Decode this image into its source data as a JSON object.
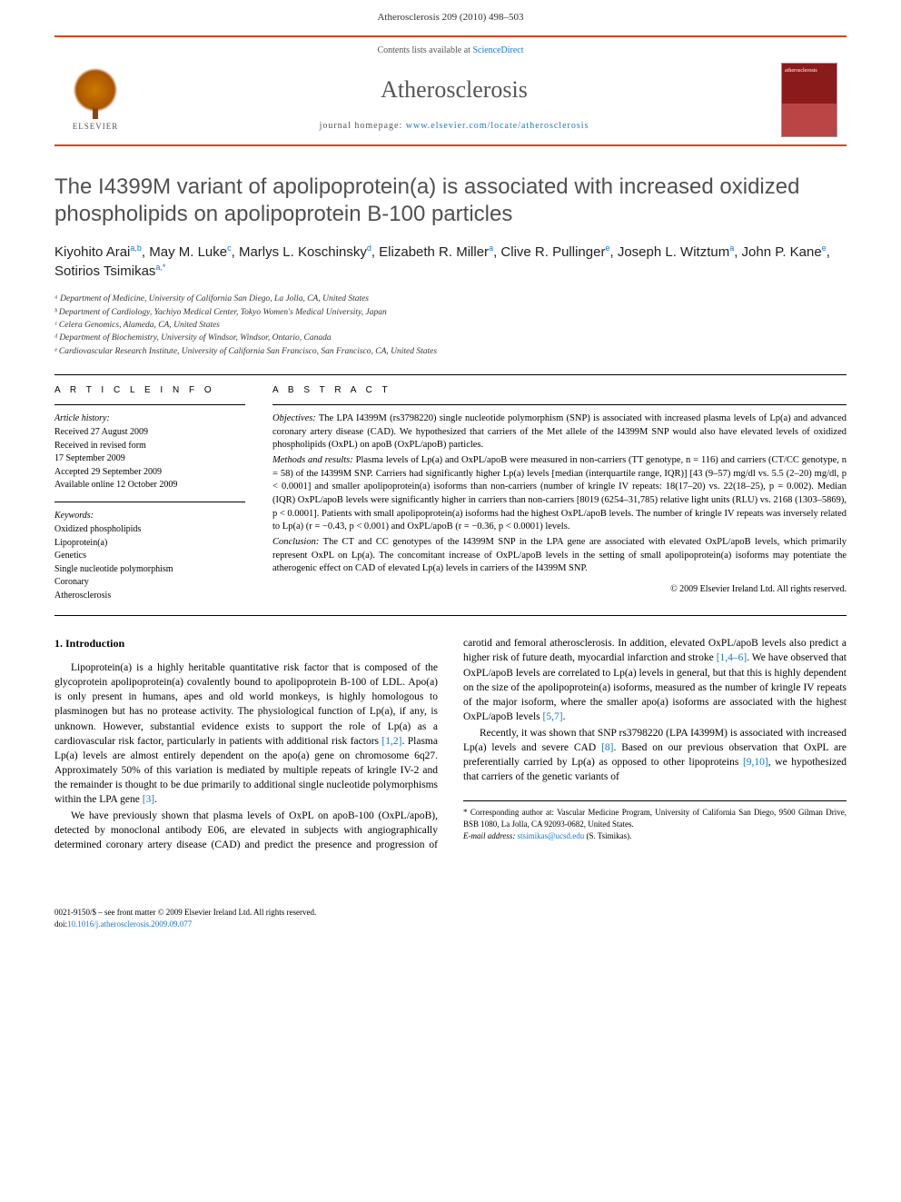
{
  "page_header": "Atherosclerosis 209 (2010) 498–503",
  "banner": {
    "contents_text": "Contents lists available at ",
    "contents_link": "ScienceDirect",
    "journal_name": "Atherosclerosis",
    "homepage_prefix": "journal homepage: ",
    "homepage_link": "www.elsevier.com/locate/atherosclerosis",
    "elsevier_label": "ELSEVIER"
  },
  "title": "The I4399M variant of apolipoprotein(a) is associated with increased oxidized phospholipids on apolipoprotein B-100 particles",
  "authors_html": "Kiyohito Arai<sup>a,b</sup>, May M. Luke<sup>c</sup>, Marlys L. Koschinsky<sup>d</sup>, Elizabeth R. Miller<sup>a</sup>, Clive R. Pullinger<sup>e</sup>, Joseph L. Witztum<sup>a</sup>, John P. Kane<sup>e</sup>, Sotirios Tsimikas<sup>a,*</sup>",
  "affiliations": [
    "ᵃ Department of Medicine, University of California San Diego, La Jolla, CA, United States",
    "ᵇ Department of Cardiology, Yachiyo Medical Center, Tokyo Women's Medical University, Japan",
    "ᶜ Celera Genomics, Alameda, CA, United States",
    "ᵈ Department of Biochemistry, University of Windsor, Windsor, Ontario, Canada",
    "ᵉ Cardiovascular Research Institute, University of California San Francisco, San Francisco, CA, United States"
  ],
  "info": {
    "heading": "A R T I C L E   I N F O",
    "history_label": "Article history:",
    "history": [
      "Received 27 August 2009",
      "Received in revised form",
      "17 September 2009",
      "Accepted 29 September 2009",
      "Available online 12 October 2009"
    ],
    "keywords_label": "Keywords:",
    "keywords": [
      "Oxidized phospholipids",
      "Lipoprotein(a)",
      "Genetics",
      "Single nucleotide polymorphism",
      "Coronary",
      "Atherosclerosis"
    ]
  },
  "abstract": {
    "heading": "A B S T R A C T",
    "objectives_label": "Objectives:",
    "objectives": " The LPA I4399M (rs3798220) single nucleotide polymorphism (SNP) is associated with increased plasma levels of Lp(a) and advanced coronary artery disease (CAD). We hypothesized that carriers of the Met allele of the I4399M SNP would also have elevated levels of oxidized phospholipids (OxPL) on apoB (OxPL/apoB) particles.",
    "methods_label": "Methods and results:",
    "methods": " Plasma levels of Lp(a) and OxPL/apoB were measured in non-carriers (TT genotype, n = 116) and carriers (CT/CC genotype, n = 58) of the I4399M SNP. Carriers had significantly higher Lp(a) levels [median (interquartile range, IQR)] [43 (9–57) mg/dl vs. 5.5 (2–20) mg/dl, p < 0.0001] and smaller apolipoprotein(a) isoforms than non-carriers (number of kringle IV repeats: 18(17–20) vs. 22(18–25), p = 0.002). Median (IQR) OxPL/apoB levels were significantly higher in carriers than non-carriers [8019 (6254–31,785) relative light units (RLU) vs. 2168 (1303–5869), p < 0.0001]. Patients with small apolipoprotein(a) isoforms had the highest OxPL/apoB levels. The number of kringle IV repeats was inversely related to Lp(a) (r = −0.43, p < 0.001) and OxPL/apoB (r = −0.36, p < 0.0001) levels.",
    "conclusion_label": "Conclusion:",
    "conclusion": " The CT and CC genotypes of the I4399M SNP in the LPA gene are associated with elevated OxPL/apoB levels, which primarily represent OxPL on Lp(a). The concomitant increase of OxPL/apoB levels in the setting of small apolipoprotein(a) isoforms may potentiate the atherogenic effect on CAD of elevated Lp(a) levels in carriers of the I4399M SNP.",
    "copyright": "© 2009 Elsevier Ireland Ltd. All rights reserved."
  },
  "intro": {
    "heading": "1. Introduction",
    "p1_a": "Lipoprotein(a) is a highly heritable quantitative risk factor that is composed of the glycoprotein apolipoprotein(a) covalently bound to apolipoprotein B-100 of LDL. Apo(a) is only present in humans, apes and old world monkeys, is highly homologous to plasminogen but has no protease activity. The physiological function of Lp(a), if any, is unknown. However, substantial evidence exists to support the role of Lp(a) as a cardiovascular risk factor, particularly in patients with additional risk factors ",
    "p1_ref1": "[1,2]",
    "p1_b": ". Plasma Lp(a) levels are almost entirely dependent on the apo(a) gene on chromosome 6q27. Approximately 50% of this variation is mediated by multiple repeats of kringle IV-2 and the remainder is thought to be due primarily to additional single nucleotide polymorphisms within the LPA gene ",
    "p1_ref2": "[3]",
    "p1_c": ".",
    "p2_a": "We have previously shown that plasma levels of OxPL on apoB-100 (OxPL/apoB), detected by monoclonal antibody E06, are elevated in subjects with angiographically determined coronary artery disease (CAD) and predict the presence and progression of carotid and femoral atherosclerosis. In addition, elevated OxPL/apoB levels also predict a higher risk of future death, myocardial infarction and stroke ",
    "p2_ref1": "[1,4–6]",
    "p2_b": ". We have observed that OxPL/apoB levels are correlated to Lp(a) levels in general, but that this is highly dependent on the size of the apolipoprotein(a) isoforms, measured as the number of kringle IV repeats of the major isoform, where the smaller apo(a) isoforms are associated with the highest OxPL/apoB levels ",
    "p2_ref2": "[5,7]",
    "p2_c": ".",
    "p3_a": "Recently, it was shown that SNP rs3798220 (LPA I4399M) is associated with increased Lp(a) levels and severe CAD ",
    "p3_ref1": "[8]",
    "p3_b": ". Based on our previous observation that OxPL are preferentially carried by Lp(a) as opposed to other lipoproteins ",
    "p3_ref2": "[9,10]",
    "p3_c": ", we hypothesized that carriers of the genetic variants of"
  },
  "corresponding": {
    "star": "*",
    "text": " Corresponding author at: Vascular Medicine Program, University of California San Diego, 9500 Gilman Drive, BSB 1080, La Jolla, CA 92093-0682, United States.",
    "email_label": "E-mail address: ",
    "email": "stsimikas@ucsd.edu",
    "email_suffix": " (S. Tsimikas)."
  },
  "footer": {
    "front_matter": "0021-9150/$ – see front matter © 2009 Elsevier Ireland Ltd. All rights reserved.",
    "doi_label": "doi:",
    "doi": "10.1016/j.atherosclerosis.2009.09.077"
  },
  "colors": {
    "accent": "#d84315",
    "link": "#1976d2",
    "title_gray": "#505050",
    "text": "#000000"
  }
}
